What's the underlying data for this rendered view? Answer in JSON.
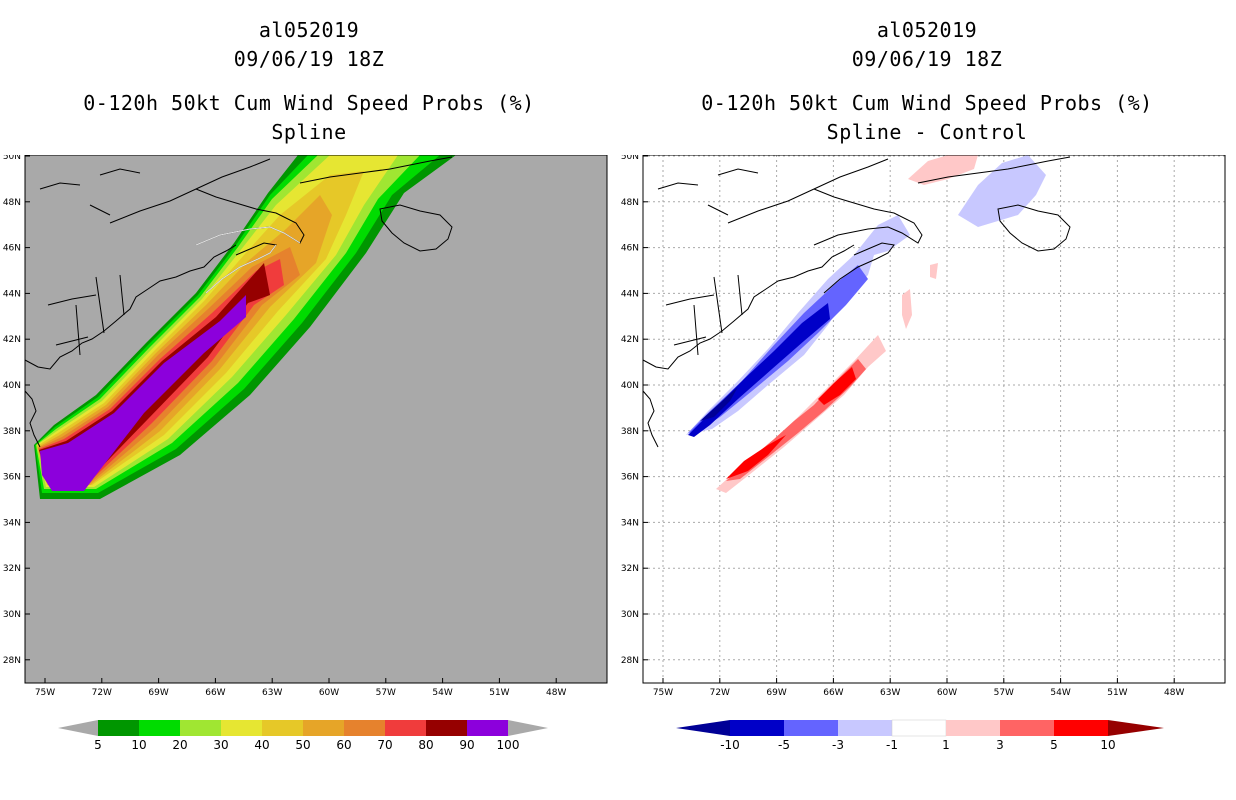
{
  "left_panel": {
    "storm_id": "al052019",
    "datetime": "09/06/19 18Z",
    "product": "0-120h 50kt Cum Wind Speed Probs (%)",
    "method": "Spline",
    "colorbar": {
      "labels": [
        "5",
        "10",
        "20",
        "30",
        "40",
        "50",
        "60",
        "70",
        "80",
        "90",
        "100"
      ],
      "colors": [
        "#009600",
        "#00dc00",
        "#a0e632",
        "#e6e632",
        "#e6c828",
        "#e6a528",
        "#e6822d",
        "#f03c3c",
        "#960000",
        "#8c00dc"
      ],
      "arrow_color": "#a9a9a9"
    }
  },
  "right_panel": {
    "storm_id": "al052019",
    "datetime": "09/06/19 18Z",
    "product": "0-120h 50kt Cum Wind Speed Probs (%)",
    "method": "Spline - Control",
    "colorbar": {
      "labels": [
        "-10",
        "-5",
        "-3",
        "-1",
        "1",
        "3",
        "5",
        "10"
      ],
      "colors": [
        "#0000c8",
        "#6464ff",
        "#c8c8ff",
        "#ffffff",
        "#ffc8c8",
        "#ff6464",
        "#ff0000"
      ],
      "left_arrow_color": "#000096",
      "right_arrow_color": "#960000"
    }
  },
  "map_axes": {
    "lat_labels": [
      "50N",
      "48N",
      "46N",
      "44N",
      "42N",
      "40N",
      "38N",
      "36N",
      "34N",
      "32N",
      "30N",
      "28N"
    ],
    "lon_labels": [
      "75W",
      "72W",
      "69W",
      "66W",
      "63W",
      "60W",
      "57W",
      "54W",
      "51W",
      "48W"
    ]
  },
  "colors": {
    "ocean_left": "#a9a9a9",
    "ocean_right": "#ffffff"
  }
}
